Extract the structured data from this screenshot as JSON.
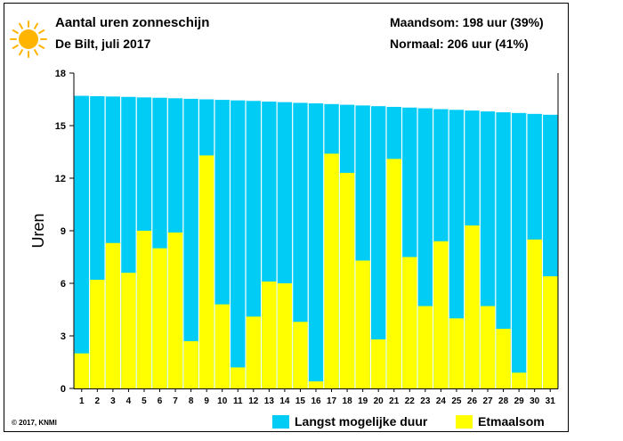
{
  "header": {
    "title": "Aantal uren zonneschijn",
    "subtitle": "De Bilt, juli 2017",
    "stat_month": "Maandsom: 198 uur (39%)",
    "stat_normal": "Normaal: 206 uur (41%)"
  },
  "footer": {
    "copyright": "© 2017, KNMI"
  },
  "colors": {
    "max_duration": "#00ccf5",
    "daily_sum": "#ffff00",
    "sun": "#ffb400"
  },
  "icons": {
    "logo": "sun-icon"
  },
  "chart_data": {
    "type": "bar",
    "ylabel": "Uren",
    "xlabel": "",
    "ylim": [
      0,
      18
    ],
    "yticks": [
      0,
      3,
      6,
      9,
      12,
      15,
      18
    ],
    "categories": [
      "1",
      "2",
      "3",
      "4",
      "5",
      "6",
      "7",
      "8",
      "9",
      "10",
      "11",
      "12",
      "13",
      "14",
      "15",
      "16",
      "17",
      "18",
      "19",
      "20",
      "21",
      "22",
      "23",
      "24",
      "25",
      "26",
      "27",
      "28",
      "29",
      "30",
      "31"
    ],
    "series": [
      {
        "name": "Langst mogelijke duur",
        "values": [
          16.7,
          16.68,
          16.66,
          16.64,
          16.61,
          16.59,
          16.56,
          16.53,
          16.5,
          16.47,
          16.44,
          16.41,
          16.37,
          16.34,
          16.3,
          16.27,
          16.23,
          16.19,
          16.15,
          16.11,
          16.07,
          16.03,
          15.99,
          15.94,
          15.9,
          15.86,
          15.81,
          15.76,
          15.72,
          15.67,
          15.62
        ]
      },
      {
        "name": "Etmaalsom",
        "values": [
          2.0,
          6.2,
          8.3,
          6.6,
          9.0,
          8.0,
          8.9,
          2.7,
          13.3,
          4.8,
          1.2,
          4.1,
          6.1,
          6.0,
          3.8,
          0.4,
          13.4,
          12.3,
          7.3,
          2.8,
          13.1,
          7.5,
          4.7,
          8.4,
          4.0,
          9.3,
          4.7,
          3.4,
          0.9,
          8.5,
          6.4
        ]
      }
    ],
    "grid": false,
    "legend": "bottom-right"
  }
}
